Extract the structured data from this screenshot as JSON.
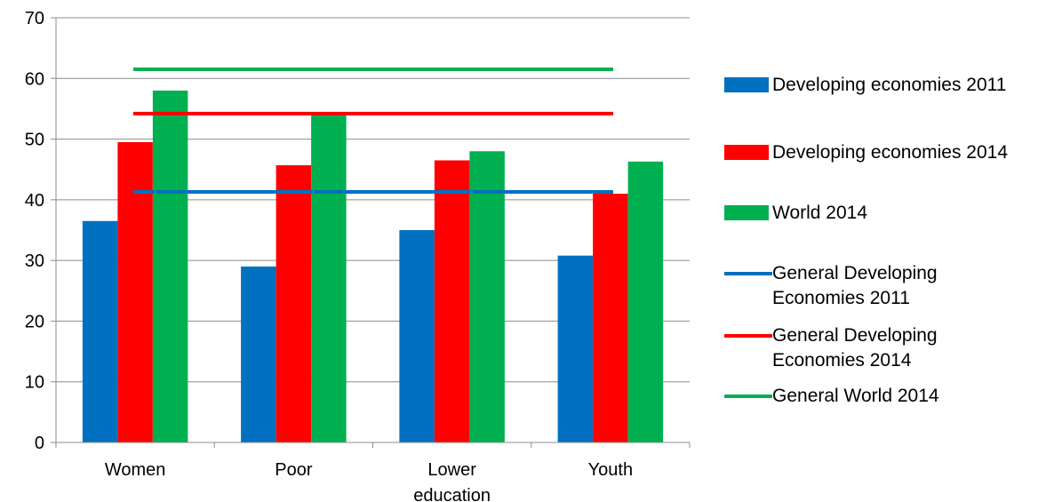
{
  "chart_data": {
    "type": "bar",
    "title": "",
    "xlabel": "",
    "ylabel": "",
    "categories": [
      "Women",
      "Poor",
      "Lower education",
      "Youth"
    ],
    "category_lines": [
      [
        "Women"
      ],
      [
        "Poor"
      ],
      [
        "Lower",
        "education"
      ],
      [
        "Youth"
      ]
    ],
    "ylim": [
      0,
      70
    ],
    "yticks": [
      0,
      10,
      20,
      30,
      40,
      50,
      60,
      70
    ],
    "ytick_labels": [
      "0",
      "10",
      "20",
      "30",
      "40",
      "50",
      "60",
      "70"
    ],
    "grid": true,
    "legend_position": "right",
    "series": [
      {
        "name": "Developing economies 2011",
        "color": "#0070C0",
        "values": [
          36.5,
          29,
          35,
          30.8
        ]
      },
      {
        "name": "Developing economies 2014",
        "color": "#FF0000",
        "values": [
          49.5,
          45.7,
          46.5,
          41
        ]
      },
      {
        "name": "World 2014",
        "color": "#00B050",
        "values": [
          58,
          54.3,
          48,
          46.3
        ]
      }
    ],
    "reference_lines": [
      {
        "name": "General Developing Economies 2011",
        "name_lines": [
          "General Developing",
          "Economies 2011"
        ],
        "color": "#0070C0",
        "value": 41.3
      },
      {
        "name": "General Developing Economies 2014",
        "name_lines": [
          "General Developing",
          "Economies 2014"
        ],
        "color": "#FF0000",
        "value": 54.2
      },
      {
        "name": "General World 2014",
        "name_lines": [
          "General World 2014"
        ],
        "color": "#00B050",
        "value": 61.5
      }
    ]
  }
}
